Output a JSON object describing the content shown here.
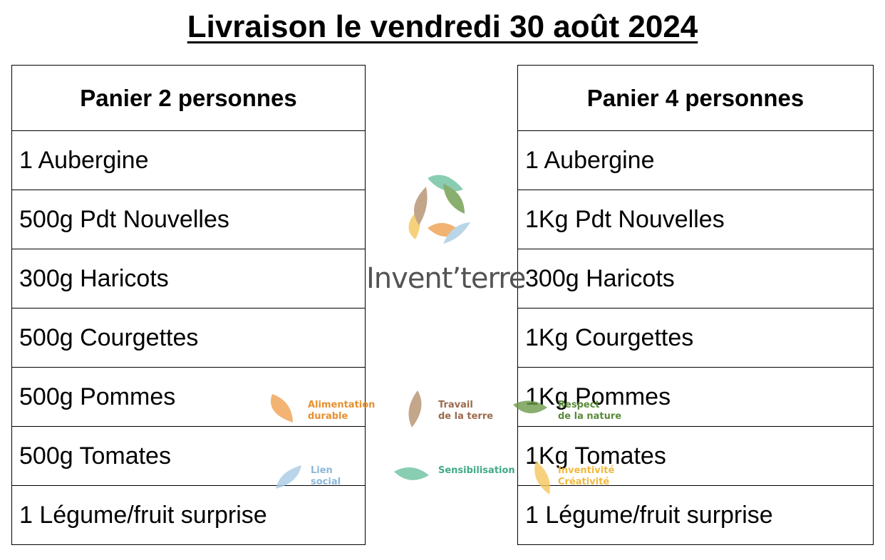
{
  "title": "Livraison le vendredi 30 août 2024",
  "baskets": [
    {
      "header": "Panier 2 personnes",
      "items": [
        "1 Aubergine",
        "500g Pdt Nouvelles",
        "300g Haricots",
        "500g Courgettes",
        "500g Pommes",
        "500g Tomates",
        "1 Légume/fruit surprise"
      ]
    },
    {
      "header": "Panier 4 personnes",
      "items": [
        "1 Aubergine",
        "1Kg Pdt Nouvelles",
        "300g Haricots",
        "1Kg Courgettes",
        "1Kg Pommes",
        "1Kg Tomates",
        "1 Légume/fruit surprise"
      ]
    }
  ],
  "logo": {
    "name": "Invent’terre",
    "colors": {
      "orange": "#f0a050",
      "brown": "#b5906e",
      "green": "#6c9a4a",
      "teal": "#6cc0a0",
      "blue": "#a9cbe3",
      "yellow": "#f5c65a"
    }
  },
  "values": {
    "alimentation": "Alimentation\ndurable",
    "travail": "Travail\nde la terre",
    "respect": "Respect\nde la nature",
    "lien": "Lien\nsocial",
    "sensibilisation": "Sensibilisation",
    "inventivite": "Inventivité\nCréativité"
  }
}
